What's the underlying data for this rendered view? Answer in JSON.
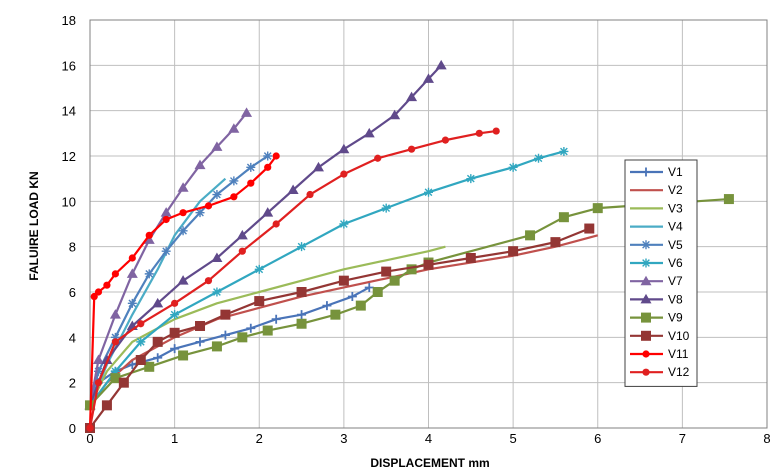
{
  "chart_data": {
    "type": "line",
    "title": "",
    "xlabel": "DISPLACEMENT mm",
    "ylabel": "FALUIRE LOAD  KN",
    "xlim": [
      0,
      8
    ],
    "ylim": [
      0,
      18
    ],
    "xticks": [
      0,
      1,
      2,
      3,
      4,
      5,
      6,
      7,
      8
    ],
    "yticks": [
      0,
      2,
      4,
      6,
      8,
      10,
      12,
      14,
      16,
      18
    ],
    "grid": true,
    "legend": "right",
    "series": [
      {
        "name": "V1",
        "color": "#4a74b8",
        "marker": "plus",
        "x": [
          0,
          0.1,
          0.3,
          0.5,
          0.8,
          1.0,
          1.3,
          1.6,
          1.9,
          2.2,
          2.5,
          2.8,
          3.1,
          3.3
        ],
        "y": [
          1.0,
          2.0,
          2.5,
          2.8,
          3.1,
          3.5,
          3.8,
          4.1,
          4.4,
          4.8,
          5.0,
          5.4,
          5.8,
          6.2
        ]
      },
      {
        "name": "V2",
        "color": "#c0504d",
        "marker": "none",
        "x": [
          0,
          0.2,
          0.5,
          1.0,
          1.5,
          2.0,
          2.5,
          3.0,
          3.5,
          4.0,
          4.5,
          5.0,
          5.5,
          6.0
        ],
        "y": [
          1.0,
          2.0,
          3.0,
          4.0,
          4.8,
          5.3,
          5.8,
          6.2,
          6.6,
          7.0,
          7.3,
          7.6,
          8.0,
          8.5
        ]
      },
      {
        "name": "V3",
        "color": "#9bbb59",
        "marker": "none",
        "x": [
          0,
          0.2,
          0.5,
          1.0,
          1.5,
          2.0,
          2.5,
          3.0,
          3.5,
          4.0,
          4.2
        ],
        "y": [
          1.0,
          2.5,
          3.8,
          4.8,
          5.5,
          6.0,
          6.5,
          7.0,
          7.4,
          7.8,
          8.0
        ]
      },
      {
        "name": "V4",
        "color": "#4bacc6",
        "marker": "none",
        "x": [
          0,
          0.2,
          0.5,
          0.8,
          1.0,
          1.3,
          1.6
        ],
        "y": [
          1.0,
          2.8,
          5.0,
          7.0,
          8.5,
          10.0,
          11.0
        ]
      },
      {
        "name": "V5",
        "color": "#4f81bd",
        "marker": "star",
        "x": [
          0,
          0.1,
          0.3,
          0.5,
          0.7,
          0.9,
          1.1,
          1.3,
          1.5,
          1.7,
          1.9,
          2.1
        ],
        "y": [
          1.0,
          2.5,
          4.0,
          5.5,
          6.8,
          7.8,
          8.7,
          9.5,
          10.3,
          10.9,
          11.5,
          12.0
        ]
      },
      {
        "name": "V6",
        "color": "#31a7c0",
        "marker": "star",
        "x": [
          0,
          0.3,
          0.6,
          1.0,
          1.5,
          2.0,
          2.5,
          3.0,
          3.5,
          4.0,
          4.5,
          5.0,
          5.3,
          5.6
        ],
        "y": [
          1.0,
          2.5,
          3.8,
          5.0,
          6.0,
          7.0,
          8.0,
          9.0,
          9.7,
          10.4,
          11.0,
          11.5,
          11.9,
          12.2
        ]
      },
      {
        "name": "V7",
        "color": "#8064a2",
        "marker": "triangle",
        "x": [
          0,
          0.1,
          0.3,
          0.5,
          0.7,
          0.9,
          1.1,
          1.3,
          1.5,
          1.7,
          1.85
        ],
        "y": [
          1.0,
          3.0,
          5.0,
          6.8,
          8.3,
          9.5,
          10.6,
          11.6,
          12.4,
          13.2,
          13.9
        ]
      },
      {
        "name": "V8",
        "color": "#604a8b",
        "marker": "triangle",
        "x": [
          0,
          0.2,
          0.5,
          0.8,
          1.1,
          1.5,
          1.8,
          2.1,
          2.4,
          2.7,
          3.0,
          3.3,
          3.6,
          3.8,
          4.0,
          4.15
        ],
        "y": [
          1.0,
          3.0,
          4.5,
          5.5,
          6.5,
          7.5,
          8.5,
          9.5,
          10.5,
          11.5,
          12.3,
          13.0,
          13.8,
          14.6,
          15.4,
          16.0
        ]
      },
      {
        "name": "V9",
        "color": "#77933c",
        "marker": "square",
        "x": [
          0,
          0.3,
          0.7,
          1.1,
          1.5,
          1.8,
          2.1,
          2.5,
          2.9,
          3.2,
          3.4,
          3.6,
          3.8,
          4.0,
          5.2,
          5.6,
          6.0,
          7.55
        ],
        "y": [
          1.0,
          2.2,
          2.7,
          3.2,
          3.6,
          4.0,
          4.3,
          4.6,
          5.0,
          5.4,
          6.0,
          6.5,
          7.0,
          7.3,
          8.5,
          9.3,
          9.7,
          10.1
        ]
      },
      {
        "name": "V10",
        "color": "#943634",
        "marker": "square",
        "x": [
          0,
          0.2,
          0.4,
          0.6,
          0.8,
          1.0,
          1.3,
          1.6,
          2.0,
          2.5,
          3.0,
          3.5,
          4.0,
          4.5,
          5.0,
          5.5,
          5.9
        ],
        "y": [
          0.0,
          1.0,
          2.0,
          3.0,
          3.8,
          4.2,
          4.5,
          5.0,
          5.6,
          6.0,
          6.5,
          6.9,
          7.2,
          7.5,
          7.8,
          8.2,
          8.8
        ]
      },
      {
        "name": "V11",
        "color": "#ff0000",
        "marker": "circle",
        "x": [
          0,
          0.05,
          0.1,
          0.2,
          0.3,
          0.5,
          0.7,
          0.9,
          1.1,
          1.4,
          1.7,
          1.9,
          2.1,
          2.2
        ],
        "y": [
          0.0,
          5.8,
          6.0,
          6.3,
          6.8,
          7.5,
          8.5,
          9.2,
          9.5,
          9.8,
          10.2,
          10.8,
          11.5,
          12.0
        ]
      },
      {
        "name": "V12",
        "color": "#e02020",
        "marker": "circle",
        "x": [
          0,
          0.1,
          0.3,
          0.6,
          1.0,
          1.4,
          1.8,
          2.2,
          2.6,
          3.0,
          3.4,
          3.8,
          4.2,
          4.6,
          4.8
        ],
        "y": [
          0.0,
          2.0,
          3.8,
          4.6,
          5.5,
          6.5,
          7.8,
          9.0,
          10.3,
          11.2,
          11.9,
          12.3,
          12.7,
          13.0,
          13.1
        ]
      }
    ]
  }
}
